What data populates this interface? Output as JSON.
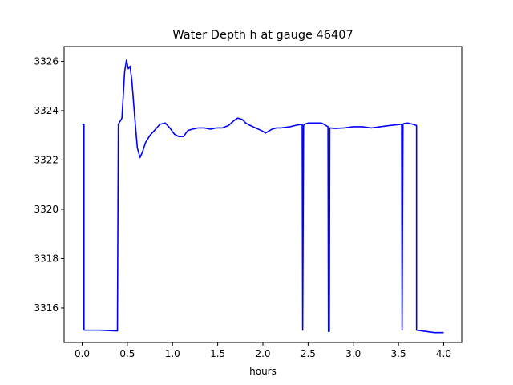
{
  "chart_data": {
    "type": "line",
    "title": "Water Depth h at gauge 46407",
    "xlabel": "hours",
    "ylabel": "",
    "xlim": [
      -0.2,
      4.2
    ],
    "ylim": [
      3314.6,
      3326.6
    ],
    "xticks": [
      0.0,
      0.5,
      1.0,
      1.5,
      2.0,
      2.5,
      3.0,
      3.5,
      4.0
    ],
    "xtick_labels": [
      "0.0",
      "0.5",
      "1.0",
      "1.5",
      "2.0",
      "2.5",
      "3.0",
      "3.5",
      "4.0"
    ],
    "yticks": [
      3316,
      3318,
      3320,
      3322,
      3324,
      3326
    ],
    "ytick_labels": [
      "3316",
      "3318",
      "3320",
      "3322",
      "3324",
      "3326"
    ],
    "grid": false,
    "series": [
      {
        "color": "#0000ff",
        "x": [
          0.0,
          0.02,
          0.02,
          0.1,
          0.2,
          0.3,
          0.39,
          0.4,
          0.4,
          0.44,
          0.47,
          0.49,
          0.51,
          0.53,
          0.55,
          0.58,
          0.61,
          0.64,
          0.67,
          0.7,
          0.75,
          0.8,
          0.86,
          0.92,
          0.97,
          1.02,
          1.07,
          1.12,
          1.17,
          1.22,
          1.28,
          1.35,
          1.42,
          1.48,
          1.55,
          1.62,
          1.68,
          1.72,
          1.77,
          1.81,
          1.86,
          1.92,
          1.98,
          2.03,
          2.1,
          2.15,
          2.2,
          2.3,
          2.38,
          2.435,
          2.44,
          2.45,
          2.46,
          2.5,
          2.58,
          2.65,
          2.72,
          2.725,
          2.735,
          2.74,
          2.74,
          2.8,
          2.9,
          3.0,
          3.1,
          3.2,
          3.3,
          3.4,
          3.535,
          3.54,
          3.55,
          3.56,
          3.6,
          3.66,
          3.7,
          3.7,
          3.8,
          3.9,
          4.0
        ],
        "y": [
          3323.45,
          3323.45,
          3315.1,
          3315.1,
          3315.1,
          3315.08,
          3315.07,
          3323.45,
          3323.45,
          3323.7,
          3325.6,
          3326.05,
          3325.7,
          3325.8,
          3325.2,
          3323.8,
          3322.5,
          3322.1,
          3322.35,
          3322.7,
          3323.0,
          3323.2,
          3323.45,
          3323.5,
          3323.3,
          3323.05,
          3322.95,
          3322.95,
          3323.2,
          3323.25,
          3323.3,
          3323.3,
          3323.25,
          3323.3,
          3323.3,
          3323.4,
          3323.6,
          3323.7,
          3323.65,
          3323.5,
          3323.4,
          3323.3,
          3323.2,
          3323.1,
          3323.25,
          3323.3,
          3323.3,
          3323.35,
          3323.42,
          3323.45,
          3315.1,
          3323.4,
          3323.45,
          3323.5,
          3323.5,
          3323.5,
          3323.35,
          3315.05,
          3315.05,
          3323.3,
          3323.3,
          3323.28,
          3323.3,
          3323.35,
          3323.35,
          3323.3,
          3323.35,
          3323.4,
          3323.45,
          3315.1,
          3323.45,
          3323.48,
          3323.5,
          3323.45,
          3323.4,
          3315.1,
          3315.05,
          3315.0,
          3315.0
        ]
      }
    ]
  }
}
